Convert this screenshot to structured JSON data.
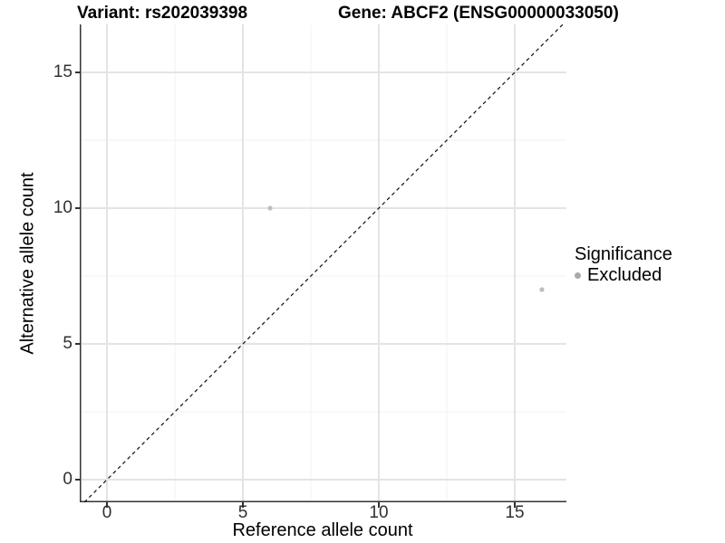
{
  "chart_data": {
    "type": "scatter",
    "titles": [
      "Variant: rs202039398",
      "Gene: ABCF2 (ENSG00000033050)"
    ],
    "xlabel": "Reference allele count",
    "ylabel": "Alternative allele count",
    "xlim": [
      -1.0,
      16.9
    ],
    "ylim": [
      -0.833,
      16.767
    ],
    "x_major_ticks": [
      0,
      5,
      10,
      15
    ],
    "y_major_ticks": [
      0,
      5,
      10,
      15
    ],
    "x_minor_ticks": [
      2.5,
      7.5,
      12.5
    ],
    "y_minor_ticks": [
      2.5,
      7.5,
      12.5
    ],
    "grid": "major+minor",
    "reference_line": {
      "type": "identity",
      "equation": "y = x",
      "style": "dashed",
      "color": "#000000"
    },
    "series": [
      {
        "name": "Excluded",
        "marker": "circle",
        "color": "#bebebe",
        "points": [
          [
            6,
            10
          ],
          [
            16,
            7
          ]
        ]
      }
    ],
    "legend": {
      "title": "Significance",
      "position": "right",
      "items": [
        {
          "label": "Excluded",
          "color": "#a9a9a9"
        }
      ]
    }
  },
  "colors": {
    "background": "#ffffff",
    "axis_line": "#333333",
    "grid_major": "#e4e4e4",
    "grid_minor": "#f0f0f0",
    "tick_label": "#303030",
    "title_text": "#000000",
    "point": "#bebebe",
    "legend_dot": "#a9a9a9",
    "dashed_line": "#0d0d0d"
  }
}
